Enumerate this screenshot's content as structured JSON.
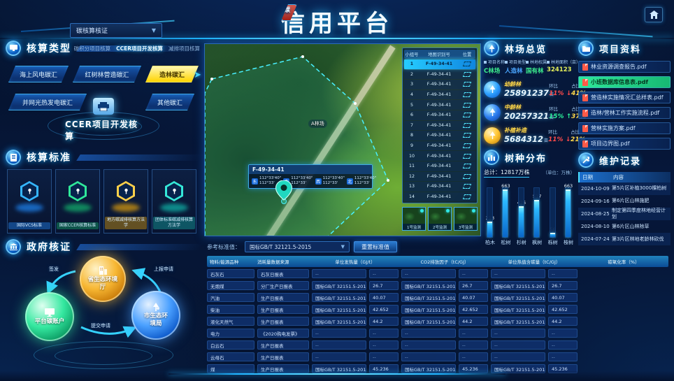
{
  "header": {
    "title_first": "碳",
    "title_rest": "信用平台",
    "selector_value": "碳核算核证"
  },
  "accounting_type": {
    "title": "核算类型",
    "links": [
      {
        "label": "碳积分项目核算",
        "cls": ""
      },
      {
        "label": "CCER项目开发核算",
        "cls": "active"
      },
      {
        "label": "减排项目核算",
        "cls": ""
      }
    ],
    "chips": [
      {
        "label": "海上风电碳汇",
        "cls": "p1"
      },
      {
        "label": "红树林营造碳汇",
        "cls": "p2"
      },
      {
        "label": "造林碳汇",
        "cls": "p3 chip-active"
      },
      {
        "label": "并网光热发电碳汇",
        "cls": "p4"
      },
      {
        "label": "其他碳汇",
        "cls": "p5"
      }
    ],
    "center_label": "CCER项目开发核算"
  },
  "standards": {
    "title": "核算标准",
    "cards": [
      {
        "label": "国际VCS标准",
        "cls": "c-blue"
      },
      {
        "label": "国家CCER核算标准",
        "cls": "c-green"
      },
      {
        "label": "地方碳减排核算方法学",
        "cls": "c-gold"
      },
      {
        "label": "团体标准碳减排核算方法学",
        "cls": "c-teal"
      }
    ]
  },
  "gov": {
    "title": "政府核证",
    "nodes": [
      {
        "label": "省生态环\n境厅",
        "cls": ""
      },
      {
        "label": "平台碳账户",
        "cls": ""
      },
      {
        "label": "市生态\n环境局",
        "cls": ""
      }
    ],
    "node1": "省生态环境厅",
    "node2": "平台碳账户",
    "node3": "市生态环境局",
    "arrow_issue": "签发",
    "arrow_submit": "提交申请",
    "arrow_report": "上报申请"
  },
  "map": {
    "area_label": "A林场",
    "tooltip": {
      "title": "F-49-34-41",
      "coords": [
        {
          "dir": "东",
          "a": "112°33'40\"",
          "b": "112°33'"
        },
        {
          "dir": "南",
          "a": "112°33'40\"",
          "b": "112°33'"
        },
        {
          "dir": "西",
          "a": "112°33'40\"",
          "b": "112°33'"
        },
        {
          "dir": "北",
          "a": "112°33'40\"",
          "b": "112°33'"
        }
      ]
    },
    "table": {
      "headers": [
        "小组号",
        "地图识别号",
        "位置"
      ],
      "rows": [
        {
          "no": "1",
          "id": "F-49-34-41",
          "cls": "sel"
        },
        {
          "no": "2",
          "id": "F-49-34-41",
          "cls": ""
        },
        {
          "no": "3",
          "id": "F-49-34-41",
          "cls": ""
        },
        {
          "no": "4",
          "id": "F-49-34-41",
          "cls": ""
        },
        {
          "no": "5",
          "id": "F-49-34-41",
          "cls": ""
        },
        {
          "no": "6",
          "id": "F-49-34-41",
          "cls": ""
        },
        {
          "no": "7",
          "id": "F-49-34-41",
          "cls": ""
        },
        {
          "no": "8",
          "id": "F-49-34-41",
          "cls": ""
        },
        {
          "no": "9",
          "id": "F-49-34-41",
          "cls": ""
        },
        {
          "no": "10",
          "id": "F-49-34-41",
          "cls": ""
        },
        {
          "no": "11",
          "id": "F-49-34-41",
          "cls": ""
        },
        {
          "no": "12",
          "id": "F-49-34-41",
          "cls": ""
        },
        {
          "no": "13",
          "id": "F-49-34-41",
          "cls": ""
        },
        {
          "no": "14",
          "id": "F-49-34-41",
          "cls": ""
        }
      ]
    },
    "thumbs": [
      {
        "label": "1号监测"
      },
      {
        "label": "2号监测"
      },
      {
        "label": "3号监测"
      }
    ]
  },
  "overview": {
    "title": "林场总览",
    "meta": [
      {
        "label": "项目名称",
        "value": "C林场",
        "cls": "v-green"
      },
      {
        "label": "项目类型",
        "value": "人造林",
        "cls": "v-blue"
      },
      {
        "label": "林地权属",
        "value": "国有林",
        "cls": "v-green"
      },
      {
        "label": "林地面积（亩）",
        "value": "324123",
        "cls": "v-yellow"
      }
    ],
    "hb_label": "环比",
    "zb_label": "占比",
    "rows": [
      {
        "label": "幼龄林",
        "value": "25891237",
        "unit": "亩",
        "hb": "11%",
        "arrow": "↓",
        "zb": "41%",
        "cls": "trend-down ic-blue"
      },
      {
        "label": "中龄林",
        "value": "20257321",
        "unit": "亩",
        "hb": "15%",
        "arrow": "↑",
        "zb": "37%",
        "cls": "trend-up ic-blue2"
      },
      {
        "label": "补植补造",
        "value": "5684312",
        "unit": "亩",
        "hb": "11%",
        "arrow": "↓",
        "zb": "21%",
        "cls": "trend-down ic-gold"
      }
    ]
  },
  "species": {
    "title": "树种分布",
    "total_label": "总计：12817万株",
    "unit_label": "（单位：万株）",
    "bars": [
      {
        "name": "柏木",
        "value": 213
      },
      {
        "name": "松树",
        "value": 663
      },
      {
        "name": "杉树",
        "value": 426
      },
      {
        "name": "枫树",
        "value": 517
      },
      {
        "name": "栎树",
        "value": 56
      },
      {
        "name": "桉树",
        "value": 663
      }
    ]
  },
  "chart_data": {
    "type": "bar",
    "title": "树种分布",
    "categories": [
      "柏木",
      "松树",
      "杉树",
      "枫树",
      "栎树",
      "桉树"
    ],
    "values": [
      213,
      663,
      426,
      517,
      56,
      663
    ],
    "total_label": "总计：12817万株",
    "ylabel": "万株",
    "ylim": [
      0,
      700
    ],
    "legend": "none",
    "grid": false
  },
  "docs": {
    "title": "项目资料",
    "items": [
      {
        "label": "林业资源调查报告.pdf",
        "cls": ""
      },
      {
        "label": "小班数据库信息表.pdf",
        "cls": "doc-active"
      },
      {
        "label": "营造林实施情况汇总样表.pdf",
        "cls": ""
      },
      {
        "label": "造林/营林工作实施流程.pdf",
        "cls": ""
      },
      {
        "label": "营林实施方案.pdf",
        "cls": ""
      },
      {
        "label": "项目边界图.pdf",
        "cls": ""
      }
    ]
  },
  "maintenance": {
    "title": "维护记录",
    "headers": [
      "日期",
      "内容"
    ],
    "rows": [
      {
        "date": "2024-10-09",
        "content": "第5片区补植3000棵柏树"
      },
      {
        "date": "2024-09-16",
        "content": "第6片区山林施肥"
      },
      {
        "date": "2024-08-25",
        "content": "制定第四季度林地经营计划"
      },
      {
        "date": "2024-08-10",
        "content": "第6片区山林除草"
      },
      {
        "date": "2024-07-24",
        "content": "第3片区林地老龄林砍伐"
      }
    ]
  },
  "emission_table": {
    "ref_label": "参考标准值：",
    "ref_value": "国标GB/T 32121.5-2015",
    "reset_label": "重置标准值",
    "headers": {
      "h1": "物料/能源品种",
      "h2": "消耗量数据来源",
      "g1": "单位发热量（GJ/t）",
      "g2": "CO2排放因子（tC/GJ）",
      "g3": "单位热值含碳量（tC/GJ）",
      "g4": "碳氧化率（%）"
    },
    "rows": [
      {
        "name": "石灰石",
        "source": "石灰日报表",
        "std": "--",
        "value": "--",
        "cls": ""
      },
      {
        "name": "无烟煤",
        "source": "分厂生产日报表",
        "std": "国标GB/T 32151.5-2015...",
        "value": "26.7",
        "cls": "row-open"
      },
      {
        "name": "汽油",
        "source": "生产日报表",
        "std": "国标GB/T 32151.5-2015...",
        "value": "40.07",
        "cls": ""
      },
      {
        "name": "柴油",
        "source": "生产日报表",
        "std": "国标GB/T 32151.5-2015...",
        "value": "42.652",
        "cls": ""
      },
      {
        "name": "液化天然气",
        "source": "生产日报表",
        "std": "国标GB/T 32151.5-2015...",
        "value": "44.2",
        "cls": ""
      },
      {
        "name": "电力",
        "source": "《2020购电发票》",
        "std": "--",
        "value": "--",
        "cls": ""
      },
      {
        "name": "白云石",
        "source": "生产日报表",
        "std": "--",
        "value": "--",
        "cls": ""
      },
      {
        "name": "云母石",
        "source": "生产日报表",
        "std": "--",
        "value": "--",
        "cls": ""
      },
      {
        "name": "煤",
        "source": "生产日报表",
        "std": "国标GB/T 32151.5-2015...",
        "value": "45.236",
        "cls": ""
      }
    ]
  }
}
